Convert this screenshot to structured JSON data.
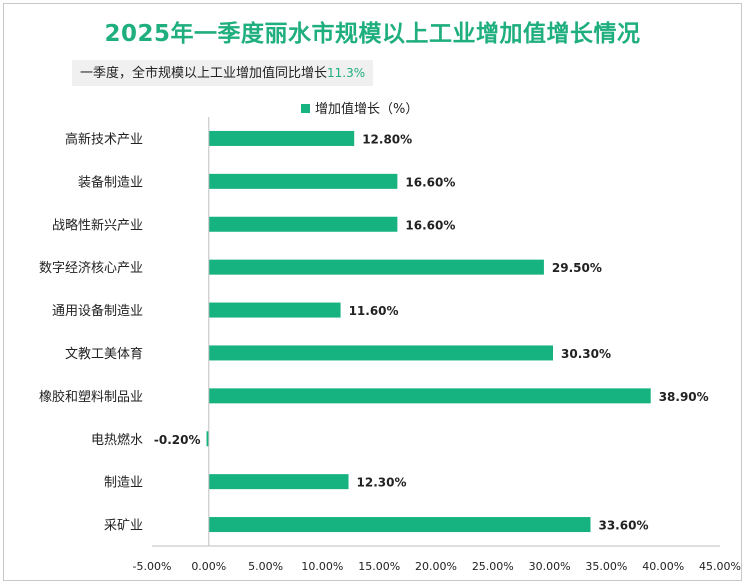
{
  "title": "2025年一季度丽水市规模以上工业增加值增长情况",
  "subtitle": {
    "text": "一季度，全市规模以上工业增加值同比增长",
    "highlight": "11.3%"
  },
  "colors": {
    "bar": "#16b27f",
    "title": "#1fae7e",
    "axis": "#bfbfbf",
    "text": "#222222"
  },
  "chart_data": {
    "type": "bar",
    "orientation": "horizontal",
    "legend": {
      "position": "top",
      "entries": [
        "增加值增长（%）"
      ]
    },
    "categories": [
      "高新技术产业",
      "装备制造业",
      "战略性新兴产业",
      "数字经济核心产业",
      "通用设备制造业",
      "文教工美体育",
      "橡胶和塑料制品业",
      "电热燃水",
      "制造业",
      "采矿业"
    ],
    "series": [
      {
        "name": "增加值增长（%）",
        "values": [
          12.8,
          16.6,
          16.6,
          29.5,
          11.6,
          30.3,
          38.9,
          -0.2,
          12.3,
          33.6
        ],
        "labels": [
          "12.80%",
          "16.60%",
          "16.60%",
          "29.50%",
          "11.60%",
          "30.30%",
          "38.90%",
          "-0.20%",
          "12.30%",
          "33.60%"
        ]
      }
    ],
    "xlim": [
      -5,
      45
    ],
    "x_ticks": [
      -5,
      0,
      5,
      10,
      15,
      20,
      25,
      30,
      35,
      40,
      45
    ],
    "x_tick_labels": [
      "-5.00%",
      "0.00%",
      "5.00%",
      "10.00%",
      "15.00%",
      "20.00%",
      "25.00%",
      "30.00%",
      "35.00%",
      "40.00%",
      "45.00%"
    ],
    "grid": false
  }
}
